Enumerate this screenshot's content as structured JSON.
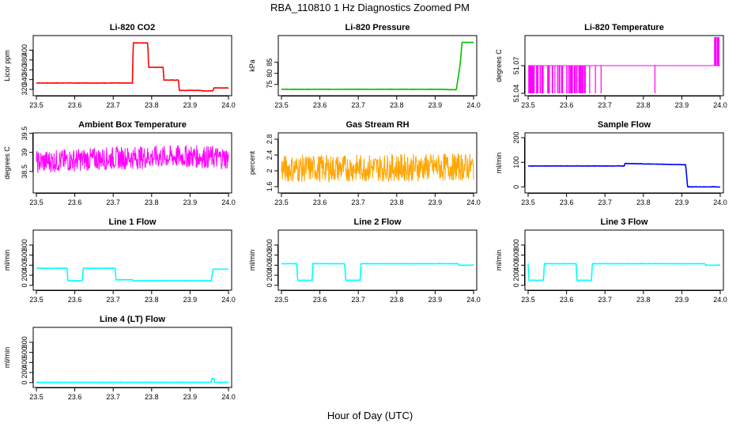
{
  "figure": {
    "title": "RBA_110810  1 Hz Diagnostics Zoomed PM",
    "xlabel": "Hour of Day (UTC)"
  },
  "chart_data": [
    {
      "type": "line",
      "title": "Li-820 CO2",
      "ylabel": "Licor ppm",
      "color": "#ff0000",
      "xlim": [
        23.5,
        24.0
      ],
      "ylim": [
        312,
        425
      ],
      "yticks": [
        320,
        340,
        360,
        380,
        400
      ],
      "xticks": [
        "23.5",
        "23.6",
        "23.7",
        "23.8",
        "23.9",
        "24.0"
      ],
      "render": "step",
      "series": [
        {
          "name": "CO2",
          "x": [
            23.5,
            23.75,
            23.752,
            23.79,
            23.792,
            23.83,
            23.832,
            23.87,
            23.872,
            23.93,
            23.932,
            23.96,
            23.962,
            24.0
          ],
          "y": [
            333,
            333,
            415,
            415,
            365,
            365,
            339,
            339,
            318,
            318,
            317,
            317,
            323,
            323
          ]
        }
      ]
    },
    {
      "type": "line",
      "title": "Li-820 Pressure",
      "ylabel": "kPa",
      "color": "#00c000",
      "xlim": [
        23.5,
        24.0
      ],
      "ylim": [
        71,
        96
      ],
      "yticks": [
        75,
        80,
        85
      ],
      "xticks": [
        "23.5",
        "23.6",
        "23.7",
        "23.8",
        "23.9",
        "24.0"
      ],
      "render": "step",
      "series": [
        {
          "name": "Pressure",
          "x": [
            23.5,
            23.91,
            23.955,
            23.965,
            23.97,
            24.0
          ],
          "y": [
            72.8,
            72.8,
            72.6,
            84,
            94,
            94
          ]
        }
      ]
    },
    {
      "type": "line",
      "title": "Li-820 Temperature",
      "ylabel": "degrees C",
      "color": "#ff00ff",
      "xlim": [
        23.5,
        24.0
      ],
      "ylim": [
        51.04,
        51.1
      ],
      "yticks": [
        51.04,
        51.07
      ],
      "xticks": [
        "23.5",
        "23.6",
        "23.7",
        "23.8",
        "23.9",
        "24.0"
      ],
      "render": "temp",
      "series": [
        {
          "name": "Temperature",
          "x": [
            23.5,
            24.0
          ],
          "y": [
            51.07,
            51.07
          ]
        }
      ]
    },
    {
      "type": "line",
      "title": "Ambient Box Temperature",
      "ylabel": "degrees C",
      "color": "#ff00ff",
      "xlim": [
        23.5,
        24.0
      ],
      "ylim": [
        38.0,
        39.45
      ],
      "yticks": [
        38.5,
        39.0,
        39.5
      ],
      "xticks": [
        "23.5",
        "23.6",
        "23.7",
        "23.8",
        "23.9",
        "24.0"
      ],
      "render": "noise",
      "series": [
        {
          "name": "Ambient",
          "x": [
            23.5,
            23.7,
            23.9,
            24.0
          ],
          "y": [
            38.75,
            38.85,
            38.9,
            38.85
          ],
          "spread": 0.3
        }
      ]
    },
    {
      "type": "line",
      "title": "Gas Stream RH",
      "ylabel": "percent",
      "color": "#ffa500",
      "xlim": [
        23.5,
        24.0
      ],
      "ylim": [
        1.5,
        2.9
      ],
      "yticks": [
        1.6,
        2.0,
        2.4,
        2.8
      ],
      "xticks": [
        "23.5",
        "23.6",
        "23.7",
        "23.8",
        "23.9",
        "24.0"
      ],
      "render": "noise",
      "series": [
        {
          "name": "RH",
          "x": [
            23.5,
            24.0
          ],
          "y": [
            2.05,
            2.1
          ],
          "spread": 0.35
        }
      ]
    },
    {
      "type": "line",
      "title": "Sample Flow",
      "ylabel": "ml/min",
      "color": "#0000ff",
      "xlim": [
        23.5,
        24.0
      ],
      "ylim": [
        -15,
        210
      ],
      "yticks": [
        0,
        100,
        200
      ],
      "xticks": [
        "23.5",
        "23.6",
        "23.7",
        "23.8",
        "23.9",
        "24.0"
      ],
      "render": "step",
      "series": [
        {
          "name": "SampleFlow",
          "x": [
            23.5,
            23.75,
            23.752,
            23.91,
            23.915,
            24.0
          ],
          "y": [
            85,
            85,
            95,
            90,
            0,
            0
          ]
        }
      ]
    },
    {
      "type": "line",
      "title": "Line 1 Flow",
      "ylabel": "ml/min",
      "color": "#00ffff",
      "xlim": [
        23.5,
        24.0
      ],
      "ylim": [
        -50,
        1050
      ],
      "yticks": [
        0,
        200,
        400,
        600,
        800
      ],
      "xticks": [
        "23.5",
        "23.6",
        "23.7",
        "23.8",
        "23.9",
        "24.0"
      ],
      "render": "step",
      "series": [
        {
          "name": "Line1",
          "x": [
            23.5,
            23.58,
            23.582,
            23.62,
            23.622,
            23.705,
            23.707,
            23.75,
            23.752,
            23.955,
            23.96,
            24.0
          ],
          "y": [
            340,
            340,
            90,
            90,
            340,
            340,
            110,
            110,
            90,
            90,
            320,
            320
          ]
        }
      ]
    },
    {
      "type": "line",
      "title": "Line 2 Flow",
      "ylabel": "ml/min",
      "color": "#00ffff",
      "xlim": [
        23.5,
        24.0
      ],
      "ylim": [
        -50,
        1050
      ],
      "yticks": [
        0,
        200,
        400,
        600,
        800
      ],
      "xticks": [
        "23.5",
        "23.6",
        "23.7",
        "23.8",
        "23.9",
        "24.0"
      ],
      "render": "step",
      "series": [
        {
          "name": "Line2",
          "x": [
            23.5,
            23.54,
            23.542,
            23.58,
            23.582,
            23.665,
            23.667,
            23.705,
            23.707,
            23.96,
            23.962,
            24.0
          ],
          "y": [
            430,
            430,
            100,
            100,
            430,
            430,
            100,
            100,
            430,
            430,
            400,
            400
          ]
        }
      ]
    },
    {
      "type": "line",
      "title": "Line 3 Flow",
      "ylabel": "ml/min",
      "color": "#00ffff",
      "xlim": [
        23.5,
        24.0
      ],
      "ylim": [
        -50,
        1050
      ],
      "yticks": [
        0,
        200,
        400,
        600,
        800
      ],
      "xticks": [
        "23.5",
        "23.6",
        "23.7",
        "23.8",
        "23.9",
        "24.0"
      ],
      "render": "step",
      "series": [
        {
          "name": "Line3",
          "x": [
            23.5,
            23.502,
            23.54,
            23.542,
            23.625,
            23.627,
            23.665,
            23.667,
            23.96,
            23.962,
            24.0
          ],
          "y": [
            430,
            100,
            100,
            430,
            430,
            100,
            100,
            430,
            430,
            400,
            400
          ]
        }
      ]
    },
    {
      "type": "line",
      "title": "Line 4 (LT) Flow",
      "ylabel": "ml/min",
      "color": "#00ffff",
      "xlim": [
        23.5,
        24.0
      ],
      "ylim": [
        -50,
        1050
      ],
      "yticks": [
        0,
        200,
        400,
        600,
        800
      ],
      "xticks": [
        "23.5",
        "23.6",
        "23.7",
        "23.8",
        "23.9",
        "24.0"
      ],
      "render": "step",
      "series": [
        {
          "name": "Line4",
          "x": [
            23.5,
            23.955,
            23.957,
            23.962,
            23.964,
            24.0
          ],
          "y": [
            5,
            5,
            80,
            80,
            5,
            5
          ]
        }
      ]
    }
  ]
}
